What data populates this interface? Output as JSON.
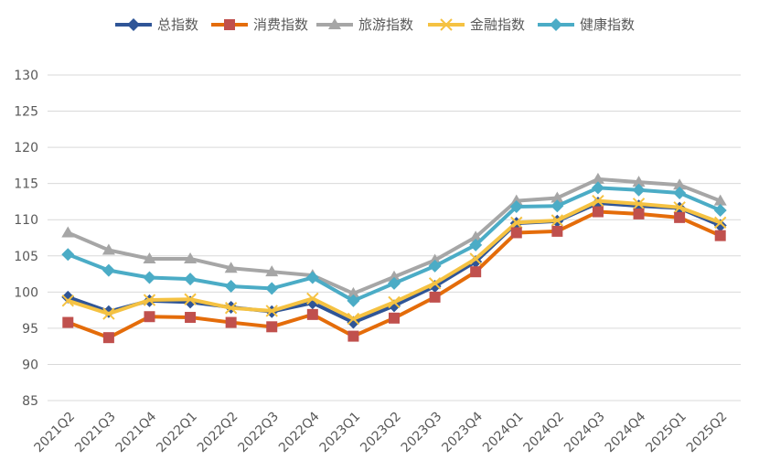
{
  "chart_data": {
    "type": "line",
    "title": "",
    "xlabel": "",
    "ylabel": "",
    "ylim": [
      85,
      130
    ],
    "yticks": [
      85,
      90,
      95,
      100,
      105,
      110,
      115,
      120,
      125,
      130
    ],
    "grid": true,
    "legend_position": "top",
    "categories": [
      "2021Q2",
      "2021Q3",
      "2021Q4",
      "2022Q1",
      "2022Q2",
      "2022Q3",
      "2022Q4",
      "2023Q1",
      "2023Q2",
      "2023Q3",
      "2023Q4",
      "2024Q1",
      "2024Q2",
      "2024Q3",
      "2024Q4",
      "2025Q1",
      "2025Q2"
    ],
    "series": [
      {
        "name": "总指数",
        "color": "#2f5597",
        "marker": "diamond",
        "values": [
          99.3,
          97.3,
          98.8,
          98.6,
          97.9,
          97.3,
          98.5,
          95.8,
          98.1,
          100.8,
          104.2,
          109.5,
          109.8,
          112.3,
          111.9,
          111.6,
          109.2
        ]
      },
      {
        "name": "消费指数",
        "color": "#e46c0a",
        "marker": "square",
        "values": [
          95.8,
          93.7,
          96.6,
          96.5,
          95.8,
          95.2,
          96.9,
          93.9,
          96.4,
          99.3,
          102.8,
          108.2,
          108.4,
          111.1,
          110.8,
          110.3,
          107.8
        ]
      },
      {
        "name": "旅游指数",
        "color": "#a6a6a6",
        "marker": "triangle",
        "values": [
          108.2,
          105.8,
          104.6,
          104.6,
          103.3,
          102.8,
          102.3,
          99.8,
          102.1,
          104.4,
          107.6,
          112.6,
          113.0,
          115.6,
          115.2,
          114.8,
          112.6
        ]
      },
      {
        "name": "金融指数",
        "color": "#f5c242",
        "marker": "x",
        "values": [
          98.8,
          97.0,
          98.9,
          99.0,
          97.8,
          97.4,
          99.1,
          96.3,
          98.6,
          101.2,
          104.6,
          109.6,
          109.9,
          112.6,
          112.2,
          111.7,
          109.6
        ]
      },
      {
        "name": "健康指数",
        "color": "#4bacc6",
        "marker": "diamond",
        "values": [
          105.2,
          103.0,
          102.0,
          101.8,
          100.8,
          100.5,
          102.0,
          98.8,
          101.2,
          103.6,
          106.5,
          111.8,
          111.9,
          114.4,
          114.1,
          113.7,
          111.3
        ]
      }
    ]
  }
}
